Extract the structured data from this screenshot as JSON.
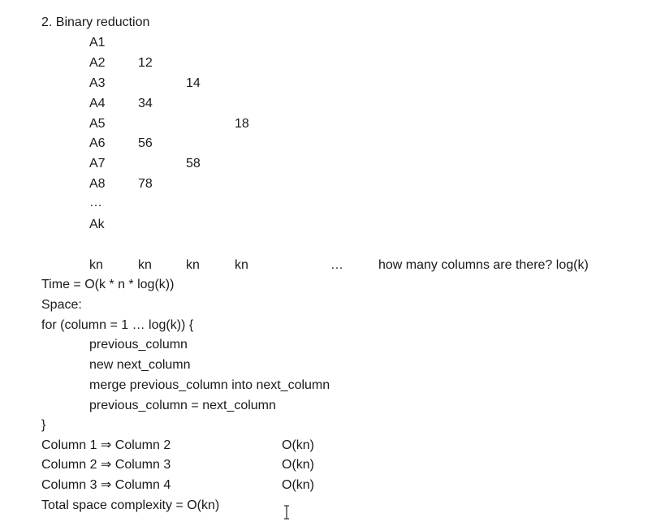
{
  "heading": "2. Binary reduction",
  "rows": [
    {
      "label": "A1",
      "values": [
        "",
        "",
        ""
      ]
    },
    {
      "label": "A2",
      "values": [
        "12",
        "",
        ""
      ]
    },
    {
      "label": "A3",
      "values": [
        "",
        "14",
        ""
      ]
    },
    {
      "label": "A4",
      "values": [
        "34",
        "",
        ""
      ]
    },
    {
      "label": "A5",
      "values": [
        "",
        "",
        "18"
      ]
    },
    {
      "label": "A6",
      "values": [
        "56",
        "",
        ""
      ]
    },
    {
      "label": "A7",
      "values": [
        "",
        "58",
        ""
      ]
    },
    {
      "label": "A8",
      "values": [
        "78",
        "",
        ""
      ]
    },
    {
      "label": "…",
      "values": [
        "",
        "",
        ""
      ]
    },
    {
      "label": "Ak",
      "values": [
        "",
        "",
        ""
      ]
    }
  ],
  "column_sizes": [
    "kn",
    "kn",
    "kn",
    "kn"
  ],
  "column_ellipsis": "…",
  "column_question": "how many columns are there? log(k)",
  "time_line": "Time = O(k * n * log(k))",
  "space_label": "Space:",
  "code": {
    "for_line": "for (column = 1 … log(k)) {",
    "body": [
      "previous_column",
      "new next_column",
      "merge previous_column into next_column",
      "previous_column = next_column"
    ],
    "close": "}"
  },
  "transitions": [
    {
      "label": "Column 1 ⇒ Column 2",
      "cost": "O(kn)"
    },
    {
      "label": "Column 2 ⇒ Column 3",
      "cost": "O(kn)"
    },
    {
      "label": "Column 3 ⇒ Column 4",
      "cost": "O(kn)"
    }
  ],
  "total": "Total space complexity = O(kn)"
}
